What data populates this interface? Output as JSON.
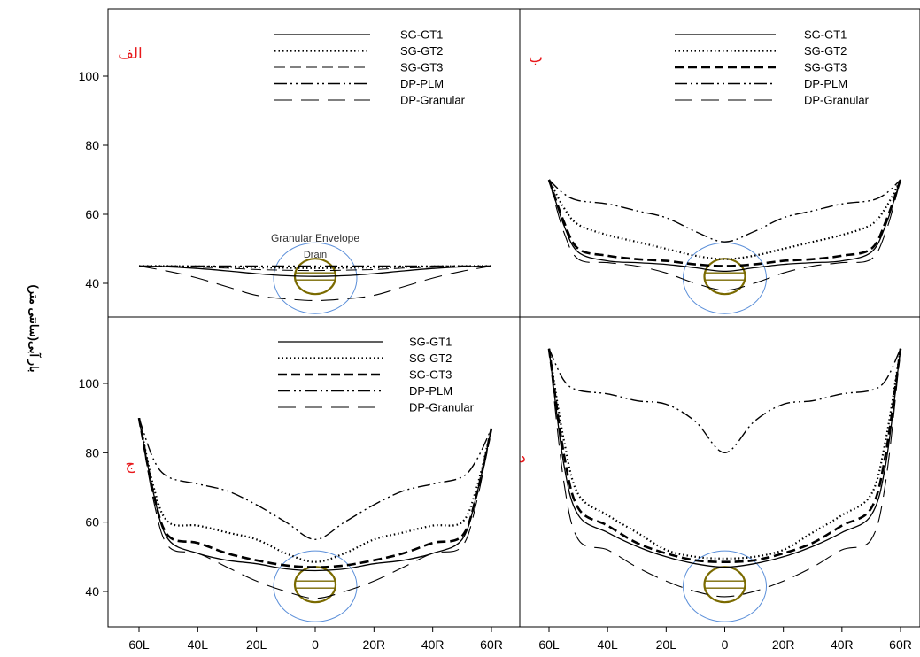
{
  "ylabel": "بار آبی(سانتی متر)",
  "x_ticks": [
    "60L",
    "40L",
    "20L",
    "0",
    "20R",
    "40R",
    "60R"
  ],
  "x_tick_values": [
    -60,
    -40,
    -20,
    0,
    20,
    40,
    60
  ],
  "top_y_ticks": [
    "40",
    "60",
    "80",
    "100"
  ],
  "bottom_y_ticks": [
    "40",
    "60",
    "80",
    "100"
  ],
  "legend_entries": [
    "SG-GT1",
    "SG-GT2",
    "SG-GT3",
    "DP-PLM",
    "DP-Granular"
  ],
  "annotations": {
    "envelope": "Granular Envelope",
    "drain": "Drain"
  },
  "colors": {
    "panel_label": "#e8191c",
    "envelope_circle": "#5b8fd9",
    "drain_circle": "#7a6a00",
    "lines": "#000000"
  },
  "chart_data": [
    {
      "type": "line",
      "panel_label": "الف",
      "xlim": [
        -60,
        60
      ],
      "ylim": [
        35,
        115
      ],
      "x": [
        -60,
        -50,
        -40,
        -30,
        -20,
        -10,
        0,
        10,
        20,
        30,
        40,
        50,
        60
      ],
      "series": [
        {
          "name": "SG-GT1",
          "style": "solid",
          "values": [
            45,
            44.8,
            44.3,
            43.6,
            42.8,
            42.2,
            42,
            42.2,
            42.8,
            43.6,
            44.3,
            44.8,
            45
          ]
        },
        {
          "name": "SG-GT2",
          "style": "dotted",
          "values": [
            45,
            45,
            44.9,
            44.8,
            44.6,
            44.5,
            44.4,
            44.5,
            44.6,
            44.8,
            44.9,
            45,
            45
          ]
        },
        {
          "name": "SG-GT3",
          "style": "dash",
          "values": [
            45,
            44.9,
            44.7,
            44.4,
            44,
            43.8,
            43.7,
            43.8,
            44,
            44.4,
            44.7,
            44.9,
            45
          ]
        },
        {
          "name": "DP-PLM",
          "style": "dashdotdot",
          "values": [
            45,
            45,
            45,
            45,
            45,
            45,
            45,
            45,
            45,
            45,
            45,
            45,
            45
          ]
        },
        {
          "name": "DP-Granular",
          "style": "longdash",
          "values": [
            45,
            43.5,
            41.5,
            39,
            36.5,
            35.5,
            35,
            35.5,
            36.5,
            39,
            41.5,
            43.5,
            45
          ]
        }
      ]
    },
    {
      "type": "line",
      "panel_label": "ب",
      "xlim": [
        -60,
        60
      ],
      "ylim": [
        35,
        115
      ],
      "x": [
        -60,
        -55,
        -50,
        -40,
        -30,
        -20,
        -10,
        0,
        10,
        20,
        30,
        40,
        50,
        55,
        60
      ],
      "series": [
        {
          "name": "SG-GT1",
          "style": "solid",
          "values": [
            70,
            57,
            49,
            46.5,
            46,
            45.5,
            44.5,
            43.5,
            44.5,
            45.5,
            46,
            46.5,
            49,
            57,
            70
          ]
        },
        {
          "name": "SG-GT2",
          "style": "dotted",
          "values": [
            70,
            62,
            57,
            54,
            52,
            50,
            48,
            47,
            48,
            50,
            52,
            54,
            57,
            62,
            70
          ]
        },
        {
          "name": "SG-GT3",
          "style": "thickdash",
          "values": [
            70,
            58,
            50,
            48,
            47,
            46.5,
            45.5,
            45,
            45.5,
            46.5,
            47,
            48,
            50,
            58,
            70
          ]
        },
        {
          "name": "DP-PLM",
          "style": "dashdotdot",
          "values": [
            70,
            66,
            64,
            63,
            61,
            59,
            55,
            52,
            55,
            59,
            61,
            63,
            64,
            66,
            70
          ]
        },
        {
          "name": "DP-Granular",
          "style": "longdash",
          "values": [
            70,
            55,
            47,
            46,
            45,
            43,
            40,
            38,
            40,
            43,
            45,
            46,
            47,
            55,
            70
          ]
        }
      ]
    },
    {
      "type": "line",
      "panel_label": "ج",
      "xlim": [
        -60,
        60
      ],
      "ylim": [
        35,
        115
      ],
      "x": [
        -60,
        -55,
        -50,
        -40,
        -30,
        -20,
        -10,
        0,
        10,
        20,
        30,
        40,
        50,
        55,
        60
      ],
      "series": [
        {
          "name": "SG-GT1",
          "style": "solid",
          "values": [
            90,
            68,
            55,
            51,
            49,
            48,
            46.5,
            46,
            46.5,
            48,
            49,
            51,
            55,
            68,
            87
          ]
        },
        {
          "name": "SG-GT2",
          "style": "dotted",
          "values": [
            90,
            70,
            60,
            59,
            57,
            55,
            51,
            48.5,
            51,
            55,
            57,
            59,
            60,
            70,
            87
          ]
        },
        {
          "name": "SG-GT3",
          "style": "thickdash",
          "values": [
            90,
            68,
            56,
            54,
            51,
            49,
            47.5,
            47,
            47.5,
            49,
            51,
            54,
            56,
            68,
            87
          ]
        },
        {
          "name": "DP-PLM",
          "style": "dashdotdot",
          "values": [
            90,
            78,
            73,
            71,
            69,
            65,
            60,
            55,
            60,
            65,
            69,
            71,
            73,
            78,
            87
          ]
        },
        {
          "name": "DP-Granular",
          "style": "longdash",
          "values": [
            90,
            66,
            53,
            51,
            47,
            43,
            40,
            38,
            40,
            43,
            47,
            51,
            53,
            66,
            87
          ]
        }
      ]
    },
    {
      "type": "line",
      "panel_label": "د",
      "xlim": [
        -60,
        60
      ],
      "ylim": [
        35,
        115
      ],
      "x": [
        -60,
        -55,
        -50,
        -40,
        -30,
        -20,
        -10,
        0,
        10,
        20,
        30,
        40,
        50,
        55,
        60
      ],
      "series": [
        {
          "name": "SG-GT1",
          "style": "solid",
          "values": [
            110,
            77,
            62,
            57,
            53,
            50,
            48,
            47,
            48,
            50,
            53,
            57,
            62,
            77,
            110
          ]
        },
        {
          "name": "SG-GT2",
          "style": "dotted",
          "values": [
            110,
            84,
            68,
            62,
            57,
            52,
            50,
            49.5,
            50,
            52,
            57,
            62,
            68,
            84,
            110
          ]
        },
        {
          "name": "SG-GT3",
          "style": "thickdash",
          "values": [
            110,
            80,
            64,
            59,
            54,
            51,
            49,
            48.5,
            49,
            51,
            54,
            59,
            64,
            80,
            110
          ]
        },
        {
          "name": "DP-PLM",
          "style": "dashdotdot",
          "values": [
            110,
            101,
            98,
            97,
            95,
            94,
            89,
            80,
            89,
            94,
            95,
            97,
            98,
            101,
            110
          ]
        },
        {
          "name": "DP-Granular",
          "style": "longdash",
          "values": [
            110,
            72,
            55,
            52,
            47,
            43,
            40,
            38.5,
            40,
            43,
            47,
            52,
            55,
            72,
            110
          ]
        }
      ]
    }
  ]
}
